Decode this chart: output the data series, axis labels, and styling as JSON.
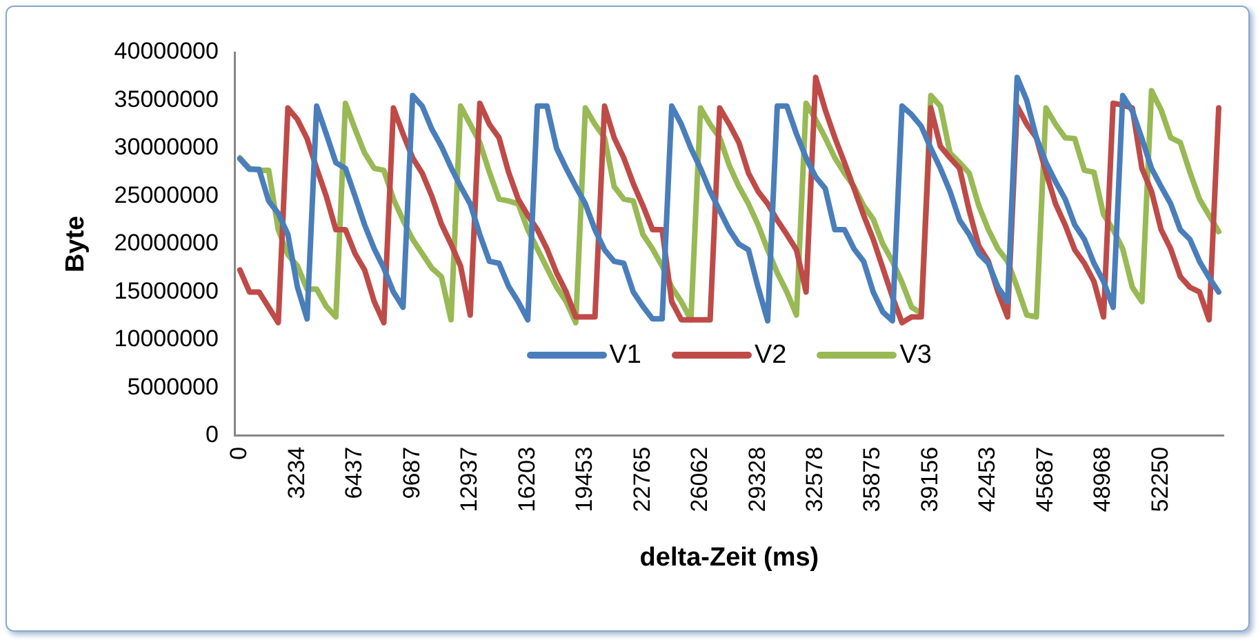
{
  "chart_data": {
    "type": "line",
    "xlabel": "delta-Zeit (ms)",
    "ylabel": "Byte",
    "categories": [
      "0",
      null,
      null,
      null,
      null,
      null,
      "3234",
      null,
      null,
      null,
      null,
      null,
      "6437",
      null,
      null,
      null,
      null,
      null,
      "9687",
      null,
      null,
      null,
      null,
      null,
      "12937",
      null,
      null,
      null,
      null,
      null,
      "16203",
      null,
      null,
      null,
      null,
      null,
      "19453",
      null,
      null,
      null,
      null,
      null,
      "22765",
      null,
      null,
      null,
      null,
      null,
      "26062",
      null,
      null,
      null,
      null,
      null,
      "29328",
      null,
      null,
      null,
      null,
      null,
      "32578",
      null,
      null,
      null,
      null,
      null,
      "35875",
      null,
      null,
      null,
      null,
      null,
      "39156",
      null,
      null,
      null,
      null,
      null,
      "42453",
      null,
      null,
      null,
      null,
      null,
      "45687",
      null,
      null,
      null,
      null,
      null,
      "48968",
      null,
      null,
      null,
      null,
      null,
      "52250",
      null,
      null,
      null,
      null,
      null,
      null
    ],
    "series": [
      {
        "name": "V1",
        "color": "#4a7ebb",
        "values": [
          28900000,
          27800000,
          27800000,
          24500000,
          23200000,
          21000000,
          15500000,
          12200000,
          34400000,
          31500000,
          28500000,
          27900000,
          25000000,
          22000000,
          19500000,
          17500000,
          15000000,
          13400000,
          35500000,
          34400000,
          32000000,
          30200000,
          28000000,
          26000000,
          24200000,
          21000000,
          18200000,
          18000000,
          15600000,
          14000000,
          12100000,
          34400000,
          34400000,
          30000000,
          27900000,
          26000000,
          24200000,
          21500000,
          19400000,
          18200000,
          18000000,
          15000000,
          13500000,
          12200000,
          12200000,
          34400000,
          32500000,
          30000000,
          27900000,
          25500000,
          23500000,
          21500000,
          20000000,
          19400000,
          15500000,
          12000000,
          34400000,
          34400000,
          31500000,
          29000000,
          27000000,
          25800000,
          21500000,
          21500000,
          19500000,
          18200000,
          15000000,
          12900000,
          12000000,
          34400000,
          33500000,
          32300000,
          30000000,
          27900000,
          25500000,
          22500000,
          21000000,
          19000000,
          18000000,
          15500000,
          14000000,
          37400000,
          35000000,
          31100000,
          28500000,
          26500000,
          24700000,
          22000000,
          20500000,
          18000000,
          16100000,
          13400000,
          35500000,
          33900000,
          31000000,
          27900000,
          26000000,
          24200000,
          21500000,
          20500000,
          18200000,
          16500000,
          15000000
        ]
      },
      {
        "name": "V2",
        "color": "#be4b48",
        "values": [
          17300000,
          15000000,
          15000000,
          13400000,
          11800000,
          34200000,
          33000000,
          31000000,
          27900000,
          25000000,
          21500000,
          21500000,
          19000000,
          17300000,
          14000000,
          11800000,
          34200000,
          31500000,
          29000000,
          27400000,
          25000000,
          22100000,
          20000000,
          17700000,
          12600000,
          34700000,
          32500000,
          31100000,
          27500000,
          24700000,
          23000000,
          21500000,
          19500000,
          17000000,
          15000000,
          12400000,
          12400000,
          12400000,
          34400000,
          31100000,
          29000000,
          26300000,
          24000000,
          21500000,
          21500000,
          14000000,
          12100000,
          12100000,
          12100000,
          12100000,
          34200000,
          32500000,
          30600000,
          27400000,
          25500000,
          24200000,
          22500000,
          21000000,
          19400000,
          15000000,
          37400000,
          34000000,
          31100000,
          28500000,
          25800000,
          23000000,
          20500000,
          17500000,
          14500000,
          11800000,
          12400000,
          12400000,
          34200000,
          30200000,
          29000000,
          27900000,
          23500000,
          19800000,
          18200000,
          15000000,
          12400000,
          34400000,
          32500000,
          31100000,
          27500000,
          24200000,
          22000000,
          19400000,
          18000000,
          16100000,
          12400000,
          34700000,
          34500000,
          34200000,
          27900000,
          25500000,
          21500000,
          19500000,
          16600000,
          15500000,
          15000000,
          12100000,
          34200000
        ]
      },
      {
        "name": "V3",
        "color": "#98b954",
        "values": [
          29000000,
          27900000,
          27700000,
          27700000,
          21500000,
          18900000,
          17700000,
          15300000,
          15300000,
          13500000,
          12400000,
          34700000,
          32000000,
          29500000,
          27900000,
          27700000,
          24700000,
          22500000,
          20500000,
          19000000,
          17500000,
          16600000,
          12100000,
          34400000,
          32500000,
          30600000,
          27500000,
          24700000,
          24500000,
          24200000,
          21500000,
          19500000,
          17500000,
          15500000,
          14000000,
          11800000,
          34200000,
          32500000,
          31100000,
          26000000,
          24700000,
          24500000,
          21000000,
          19500000,
          17700000,
          15500000,
          14000000,
          12100000,
          34200000,
          32500000,
          31100000,
          28200000,
          26000000,
          24200000,
          22000000,
          19400000,
          17000000,
          15000000,
          12600000,
          34700000,
          33000000,
          31100000,
          29000000,
          27400000,
          26000000,
          24000000,
          22600000,
          20000000,
          18200000,
          16000000,
          13400000,
          12800000,
          35500000,
          34400000,
          29500000,
          28500000,
          27400000,
          24000000,
          21500000,
          19500000,
          18200000,
          15500000,
          12600000,
          12400000,
          34200000,
          32500000,
          31100000,
          31000000,
          27700000,
          27500000,
          23100000,
          21500000,
          19500000,
          15500000,
          14000000,
          36000000,
          34000000,
          31100000,
          30600000,
          27500000,
          24700000,
          23000000,
          21300000
        ]
      }
    ],
    "ylim": [
      0,
      40000000
    ],
    "yticks": [
      0,
      5000000,
      10000000,
      15000000,
      20000000,
      25000000,
      30000000,
      35000000,
      40000000
    ],
    "grid": false,
    "legend": "bottom",
    "marker": "none",
    "line_style": "solid"
  }
}
